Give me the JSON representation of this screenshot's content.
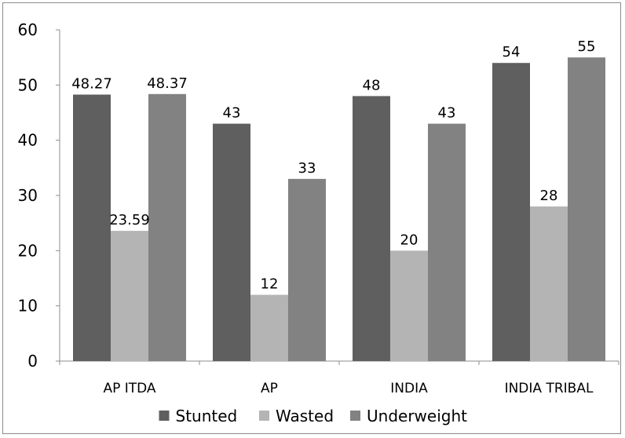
{
  "chart_data": {
    "type": "bar",
    "title": "",
    "xlabel": "",
    "ylabel": "",
    "categories": [
      "AP ITDA",
      "AP",
      "INDIA",
      "INDIA TRIBAL"
    ],
    "series": [
      {
        "name": "Stunted",
        "values": [
          48.27,
          43,
          48,
          54
        ],
        "labels": [
          "48.27",
          "43",
          "48",
          "54"
        ],
        "color": "#5f5f5f"
      },
      {
        "name": "Wasted",
        "values": [
          23.59,
          12,
          20,
          28
        ],
        "labels": [
          "23.59",
          "12",
          "20",
          "28"
        ],
        "color": "#b4b4b4"
      },
      {
        "name": "Underweight",
        "values": [
          48.37,
          33,
          43,
          55
        ],
        "labels": [
          "48.37",
          "33",
          "43",
          "55"
        ],
        "color": "#828282"
      }
    ],
    "ylim": [
      0,
      60
    ],
    "yticks": [
      0,
      10,
      20,
      30,
      40,
      50,
      60
    ],
    "grid": false,
    "legend": "bottom"
  }
}
